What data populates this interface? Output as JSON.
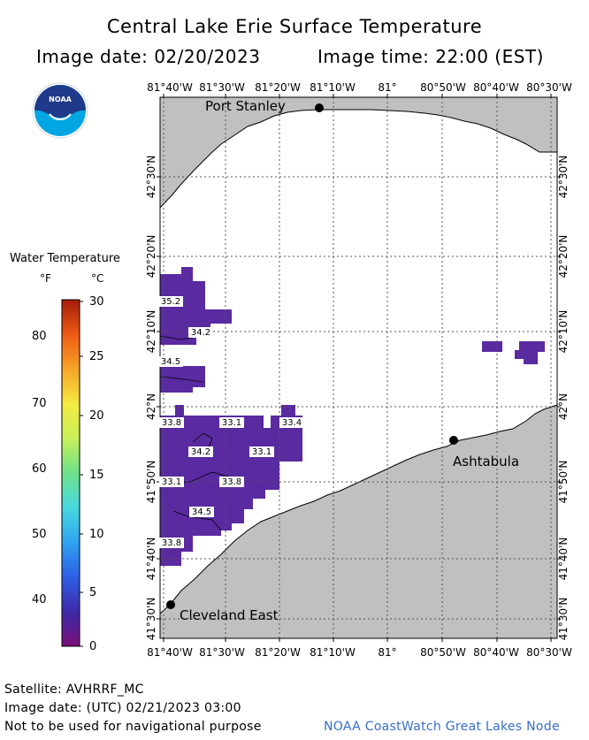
{
  "header": {
    "title": "Central Lake Erie Surface Temperature",
    "image_date": "Image date: 02/20/2023",
    "image_time": "Image time: 22:00 (EST)"
  },
  "logo": {
    "text": "NOAA",
    "icon": "noaa-logo"
  },
  "legend": {
    "title": "Water Temperature",
    "unit_f": "°F",
    "unit_c": "°C",
    "f_ticks": [
      "80",
      "70",
      "60",
      "50",
      "40"
    ],
    "c_ticks": [
      "30",
      "25",
      "20",
      "15",
      "10",
      "5",
      "0"
    ],
    "colors": [
      "#7a0f7a",
      "#3d2aa8",
      "#2e5ee6",
      "#2ea4f0",
      "#48d8e0",
      "#6ee08a",
      "#c8f05a",
      "#f5ea40",
      "#f7a428",
      "#ee5a14",
      "#a51c0c"
    ]
  },
  "map": {
    "lon_labels": [
      "81°40'W",
      "81°30'W",
      "81°20'W",
      "81°10'W",
      "81°",
      "80°50'W",
      "80°40'W",
      "80°30'W"
    ],
    "lat_labels": [
      "42°30'N",
      "42°20'N",
      "42°10'N",
      "42°N",
      "41°50'N",
      "41°40'N",
      "41°30'N"
    ],
    "cities": [
      {
        "name": "Port Stanley"
      },
      {
        "name": "Ashtabula"
      },
      {
        "name": "Cleveland East"
      }
    ],
    "temp_labels": [
      "35.2",
      "34.2",
      "34.5",
      "33.8",
      "33.1",
      "33.4",
      "34.2",
      "33.1",
      "33.1",
      "33.8",
      "34.5",
      "33.8"
    ]
  },
  "footer": {
    "satellite": "Satellite: AVHRRF_MC",
    "utc_date": "Image date: (UTC) 02/21/2023  03:00",
    "disclaimer": "Not to be used for navigational purpose",
    "credit": "NOAA CoastWatch Great Lakes Node"
  }
}
